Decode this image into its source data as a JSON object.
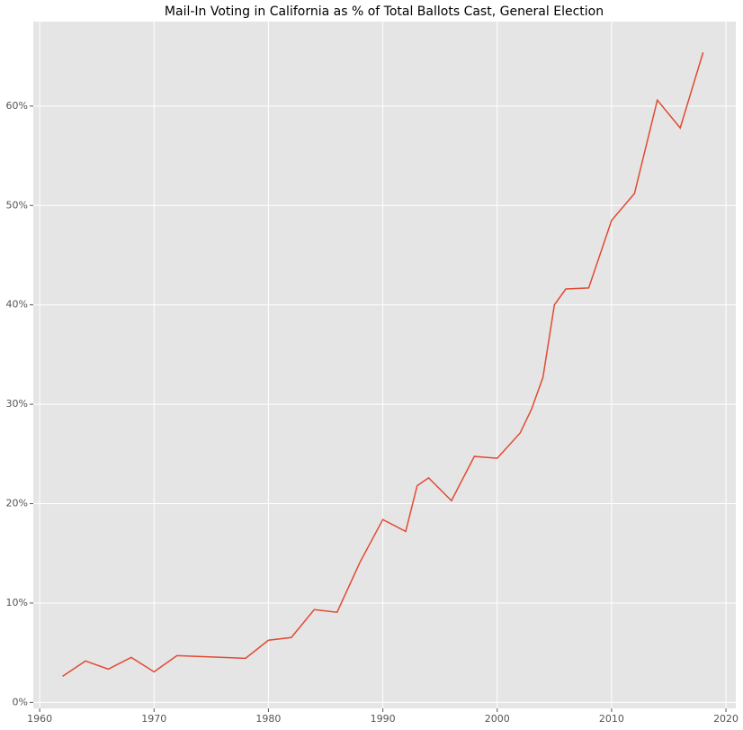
{
  "chart_data": {
    "type": "line",
    "title": "Mail-In Voting in California as % of Total Ballots Cast, General Election",
    "x": [
      1962,
      1964,
      1966,
      1968,
      1970,
      1972,
      1978,
      1980,
      1982,
      1984,
      1986,
      1988,
      1990,
      1992,
      1993,
      1994,
      1996,
      1998,
      2000,
      2002,
      2003,
      2004,
      2005,
      2006,
      2008,
      2010,
      2012,
      2014,
      2016,
      2018
    ],
    "series": [
      {
        "color": "#e24a33",
        "values": [
          2.63,
          4.17,
          3.35,
          4.53,
          3.08,
          4.71,
          4.44,
          6.26,
          6.53,
          9.34,
          9.07,
          14.1,
          18.4,
          17.2,
          21.8,
          22.6,
          20.3,
          24.75,
          24.57,
          27.1,
          29.5,
          32.7,
          40.0,
          41.6,
          41.7,
          48.5,
          51.2,
          60.6,
          57.8,
          65.4
        ]
      }
    ],
    "xlim": [
      1959.44,
      2020.86
    ],
    "xticks": [
      1960,
      1970,
      1980,
      1990,
      2000,
      2010,
      2020
    ],
    "ylim": [
      -0.6,
      68.5
    ],
    "yticks": [
      {
        "value": 0,
        "label": "0%"
      },
      {
        "value": 10,
        "label": "10%"
      },
      {
        "value": 20,
        "label": "20%"
      },
      {
        "value": 30,
        "label": "30%"
      },
      {
        "value": 40,
        "label": "40%"
      },
      {
        "value": 50,
        "label": "50%"
      },
      {
        "value": 60,
        "label": "60%"
      }
    ],
    "grid": true
  }
}
